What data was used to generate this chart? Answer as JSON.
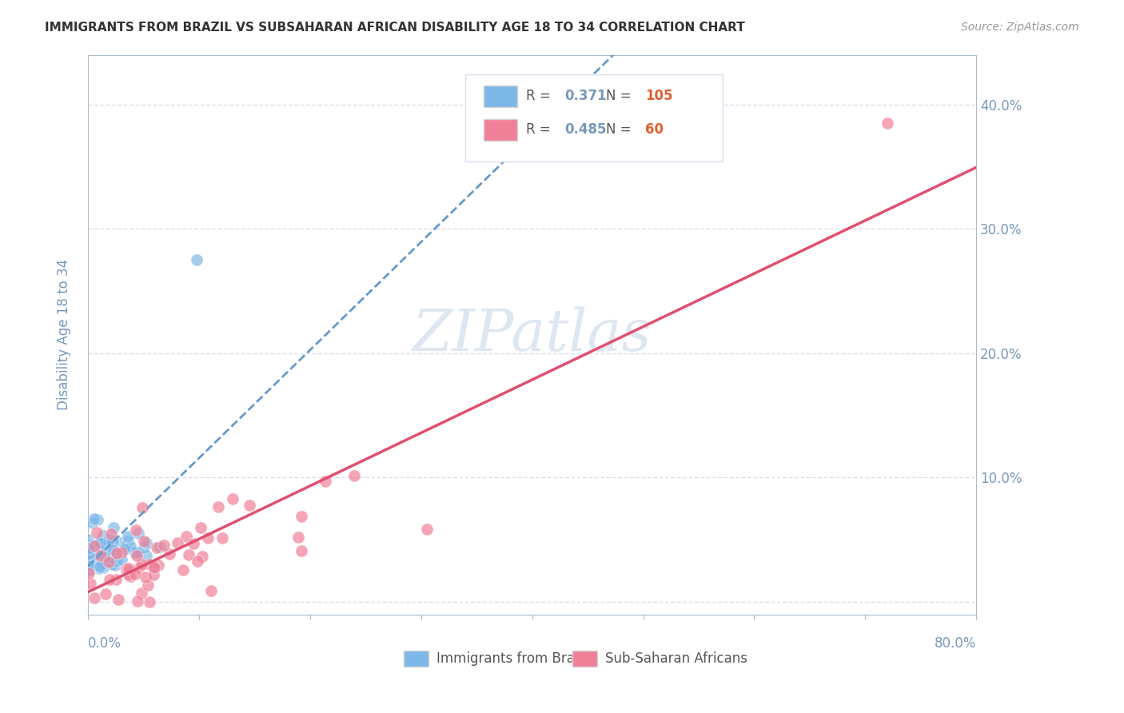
{
  "title": "IMMIGRANTS FROM BRAZIL VS SUBSAHARAN AFRICAN DISABILITY AGE 18 TO 34 CORRELATION CHART",
  "source": "Source: ZipAtlas.com",
  "ylabel": "Disability Age 18 to 34",
  "xlim": [
    0.0,
    0.8
  ],
  "ylim": [
    -0.01,
    0.44
  ],
  "brazil_R": 0.371,
  "brazil_N": 105,
  "subsaharan_R": 0.485,
  "subsaharan_N": 60,
  "brazil_color": "#7EB8E8",
  "subsaharan_color": "#F08098",
  "brazil_line_color": "#6699CC",
  "subsaharan_line_color": "#E05070",
  "legend_label_brazil": "Immigrants from Brazil",
  "legend_label_subsaharan": "Sub-Saharan Africans",
  "watermark": "ZIPatlas",
  "watermark_color": "#C8D8E8",
  "brazil_seed": 42,
  "subsaharan_seed": 7,
  "background_color": "#FFFFFF",
  "grid_color": "#DDDDEE",
  "axis_color": "#AABBCC",
  "tick_color": "#7799BB",
  "title_color": "#333333",
  "source_color": "#999999",
  "n_color": "#E06030"
}
